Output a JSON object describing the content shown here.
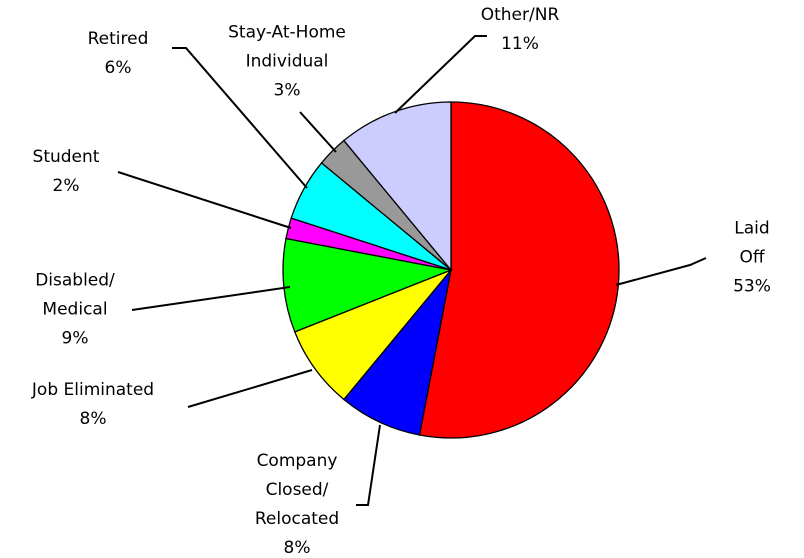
{
  "chart_data": {
    "type": "pie",
    "categories": [
      "Laid Off",
      "Company\nClosed/\nRelocated",
      "Job Eliminated",
      "Disabled/\nMedical",
      "Student",
      "Retired",
      "Stay-At-Home\nIndividual",
      "Other/NR"
    ],
    "values": [
      53,
      8,
      8,
      9,
      2,
      6,
      3,
      11
    ],
    "value_labels": [
      "53%",
      "8%",
      "8%",
      "9%",
      "2%",
      "6%",
      "3%",
      "11%"
    ],
    "colors": [
      "#ff0000",
      "#0000ff",
      "#ffff00",
      "#00ff00",
      "#ff00ff",
      "#00ffff",
      "#999999",
      "#ccccff"
    ]
  }
}
